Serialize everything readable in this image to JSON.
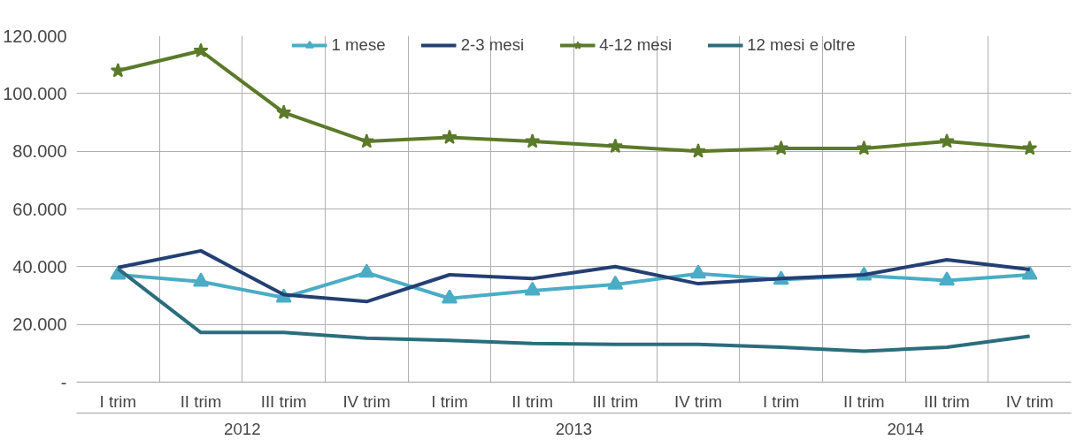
{
  "chart_data": {
    "type": "line",
    "categories": [
      "I trim",
      "II trim",
      "III trim",
      "IV trim",
      "I trim",
      "II trim",
      "III trim",
      "IV trim",
      "I trim",
      "II trim",
      "III trim",
      "IV trim"
    ],
    "series": [
      {
        "name": "1 mese",
        "color": "#4bacc6",
        "marker": "triangle",
        "values": [
          37200,
          34800,
          29300,
          37900,
          29000,
          31700,
          33800,
          37600,
          35500,
          36900,
          35200,
          37200
        ]
      },
      {
        "name": "2-3 mesi",
        "color": "#243f73",
        "marker": "none",
        "values": [
          39700,
          45500,
          30300,
          27900,
          37200,
          35900,
          40000,
          34100,
          35900,
          37200,
          42400,
          39000
        ]
      },
      {
        "name": "4-12 mesi",
        "color": "#5b7a2a",
        "marker": "star",
        "values": [
          107900,
          114800,
          93400,
          83400,
          84800,
          83400,
          81700,
          80000,
          81000,
          81000,
          83400,
          81000
        ]
      },
      {
        "name": "12 mesi e oltre",
        "color": "#2b6d7d",
        "marker": "none",
        "values": [
          39300,
          17200,
          17200,
          15200,
          14500,
          13400,
          13100,
          13100,
          12100,
          10700,
          12100,
          15900
        ]
      }
    ],
    "annotations": [
      "2012",
      "2013",
      "2014"
    ],
    "ylim": [
      0,
      120000
    ],
    "yticks": [
      {
        "value": 0,
        "label": "-"
      },
      {
        "value": 20000,
        "label": "20.000"
      },
      {
        "value": 40000,
        "label": "40.000"
      },
      {
        "value": 60000,
        "label": "60.000"
      },
      {
        "value": 80000,
        "label": "80.000"
      },
      {
        "value": 100000,
        "label": "100.000"
      },
      {
        "value": 120000,
        "label": "120.000"
      }
    ],
    "grid": true,
    "legend": "top",
    "line_style": "solid"
  }
}
